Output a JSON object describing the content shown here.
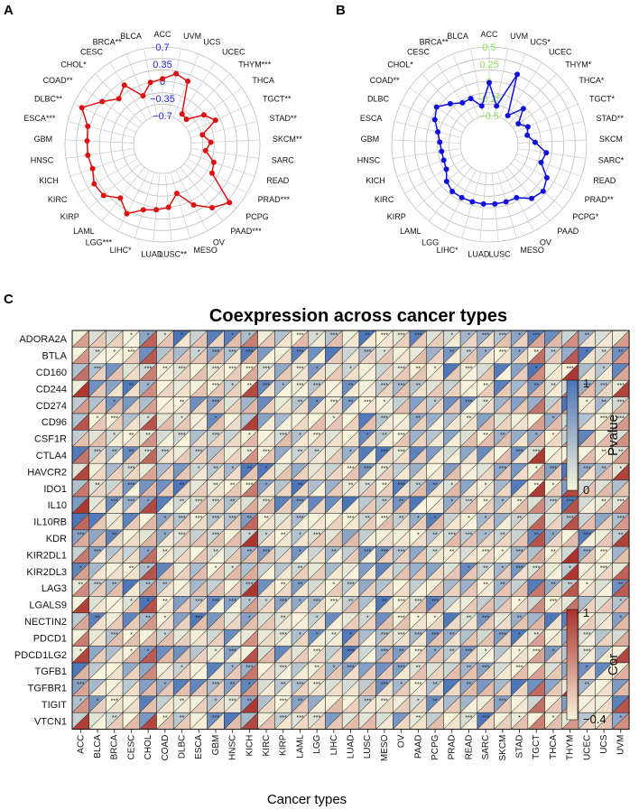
{
  "panel_labels": [
    "A",
    "B",
    "C"
  ],
  "chart_data": [
    {
      "type": "radar",
      "panel": "A",
      "series_color": "#dd1111",
      "ring_label_color": "#2222dd",
      "ring_labels": [
        "0.7",
        "0.35",
        "0",
        "−0.35",
        "−0.7"
      ],
      "rlim": [
        -0.7,
        0.7
      ],
      "categories": [
        "ACC",
        "UVM",
        "UCS",
        "UCEC",
        "THYM***",
        "THCA",
        "TGCT**",
        "STAD**",
        "SKCM**",
        "SARC",
        "READ",
        "PRAD***",
        "PCPG",
        "PAAD***",
        "OV",
        "MESO",
        "LUSC**",
        "LUAD",
        "LIHC*",
        "LGG***",
        "LAML",
        "KIRP",
        "KIRC",
        "KICH",
        "HNSC",
        "GBM",
        "ESCA***",
        "DLBC**",
        "COAD**",
        "CHOL*",
        "CESC",
        "BRCA**",
        "BLCA"
      ],
      "values": [
        0.05,
        0.18,
        0.1,
        -0.55,
        -0.58,
        -0.25,
        -0.1,
        -0.45,
        -0.3,
        -0.4,
        -0.18,
        -0.12,
        0.52,
        0.35,
        0.1,
        -0.25,
        0.0,
        0.05,
        0.1,
        0.3,
        0.1,
        0.3,
        0.32,
        0.22,
        0.25,
        0.25,
        0.28,
        0.52,
        0.22,
        0.0,
        0.15,
        -0.22,
        0.0
      ]
    },
    {
      "type": "radar",
      "panel": "B",
      "series_color": "#1111dd",
      "ring_label_color": "#88dd55",
      "ring_labels": [
        "0.5",
        "0.25",
        "0",
        "−0.25",
        "−0.5"
      ],
      "rlim": [
        -0.5,
        0.5
      ],
      "categories": [
        "ACC",
        "UVM",
        "UCS*",
        "UCEC",
        "THYM*",
        "THCA*",
        "TGCT*",
        "STAD**",
        "SKCM",
        "SARC*",
        "READ",
        "PRAD**",
        "PCPG*",
        "PAAD",
        "OV",
        "MESO",
        "LUSC",
        "LUAD",
        "LIHC*",
        "LGG",
        "LAML",
        "KIRP",
        "KIRC",
        "KICH",
        "HNSC",
        "GBM",
        "ESCA",
        "DLBC",
        "COAD**",
        "CHOL*",
        "CESC",
        "BRCA**",
        "BLCA"
      ],
      "values": [
        -0.02,
        -0.35,
        0.18,
        -0.42,
        -0.2,
        -0.4,
        -0.3,
        -0.35,
        -0.25,
        -0.08,
        -0.12,
        0.05,
        0.12,
        0.08,
        -0.05,
        -0.05,
        -0.05,
        -0.05,
        -0.05,
        -0.05,
        -0.05,
        -0.1,
        -0.2,
        -0.22,
        -0.22,
        -0.2,
        -0.15,
        -0.05,
        0.02,
        -0.1,
        -0.2,
        -0.2,
        -0.35
      ]
    },
    {
      "type": "heatmap",
      "panel": "C",
      "title": "Coexpression across cancer types",
      "xlabel": "Cancer types",
      "rows": [
        "ADORA2A",
        "BTLA",
        "CD160",
        "CD244",
        "CD274",
        "CD96",
        "CSF1R",
        "CTLA4",
        "HAVCR2",
        "IDO1",
        "IL10",
        "IL10RB",
        "KDR",
        "KIR2DL1",
        "KIR2DL3",
        "LAG3",
        "LGALS9",
        "NECTIN2",
        "PDCD1",
        "PDCD1LG2",
        "TGFB1",
        "TGFBR1",
        "TIGIT",
        "VTCN1"
      ],
      "columns": [
        "ACC",
        "BLCA",
        "BRCA",
        "CESC",
        "CHOL",
        "COAD",
        "DLBC",
        "ESCA",
        "GBM",
        "HNSC",
        "KICH",
        "KIRC",
        "KIRP",
        "LAML",
        "LGG",
        "LIHC",
        "LUAD",
        "LUSC",
        "MESO",
        "OV",
        "PAAD",
        "PCPG",
        "PRAD",
        "READ",
        "SARC",
        "SKCM",
        "STAD",
        "TGCT",
        "THCA",
        "THYM",
        "UCEC",
        "UCS",
        "UVM"
      ],
      "strong_columns": [
        "ACC",
        "CHOL",
        "KICH",
        "TGCT",
        "THYM",
        "UVM"
      ],
      "sig_marks": [
        "*",
        "**",
        "***"
      ],
      "legends": [
        {
          "title": "Pvalue",
          "max_label": "1",
          "min_label": "0",
          "colors": [
            "#4a74b8",
            "#f7f5dc"
          ]
        },
        {
          "title": "Cor",
          "max_label": "1",
          "min_label": "−0.4",
          "colors": [
            "#a8322c",
            "#f9f3dd"
          ]
        }
      ]
    }
  ]
}
